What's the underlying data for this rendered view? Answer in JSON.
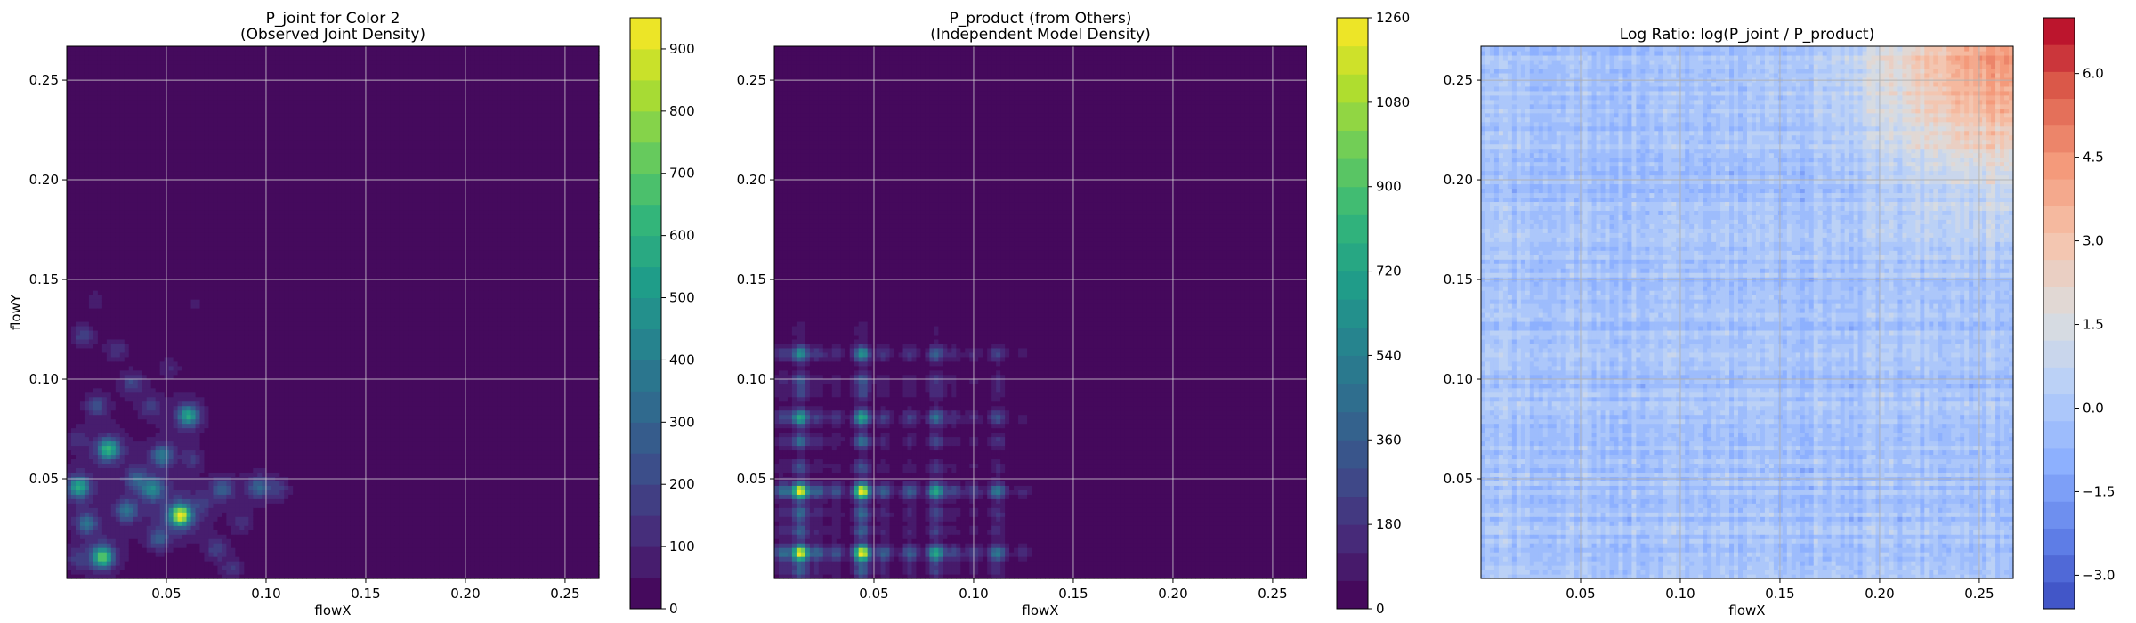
{
  "chart_data": [
    {
      "type": "heatmap",
      "title": "P_joint for Color 2\n(Observed Joint Density)",
      "xlabel": "flowX",
      "ylabel": "flowY",
      "xlim": [
        0.0,
        0.267
      ],
      "ylim": [
        0.0,
        0.267
      ],
      "x_ticks": [
        0.05,
        0.1,
        0.15,
        0.2,
        0.25
      ],
      "x_tick_labels": [
        "0.05",
        "0.10",
        "0.15",
        "0.20",
        "0.25"
      ],
      "y_ticks": [
        0.05,
        0.1,
        0.15,
        0.2,
        0.25
      ],
      "y_tick_labels": [
        "0.05",
        "0.10",
        "0.15",
        "0.20",
        "0.25"
      ],
      "grid": true,
      "colormap": "viridis",
      "colorbar": {
        "min": 0,
        "max": 950,
        "ticks": [
          0,
          100,
          200,
          300,
          400,
          500,
          600,
          700,
          800,
          900
        ],
        "tick_labels": [
          "0",
          "100",
          "200",
          "300",
          "400",
          "500",
          "600",
          "700",
          "800",
          "900"
        ]
      },
      "hotspots": [
        {
          "x": 0.057,
          "y": 0.032,
          "value": 950
        },
        {
          "x": 0.018,
          "y": 0.011,
          "value": 720
        },
        {
          "x": 0.021,
          "y": 0.065,
          "value": 640
        },
        {
          "x": 0.006,
          "y": 0.046,
          "value": 580
        },
        {
          "x": 0.061,
          "y": 0.082,
          "value": 560
        },
        {
          "x": 0.043,
          "y": 0.045,
          "value": 420
        },
        {
          "x": 0.048,
          "y": 0.062,
          "value": 380
        },
        {
          "x": 0.03,
          "y": 0.034,
          "value": 360
        },
        {
          "x": 0.01,
          "y": 0.028,
          "value": 330
        },
        {
          "x": 0.096,
          "y": 0.046,
          "value": 300
        },
        {
          "x": 0.078,
          "y": 0.045,
          "value": 280
        },
        {
          "x": 0.046,
          "y": 0.02,
          "value": 260
        },
        {
          "x": 0.035,
          "y": 0.05,
          "value": 250
        },
        {
          "x": 0.015,
          "y": 0.087,
          "value": 230
        },
        {
          "x": 0.033,
          "y": 0.098,
          "value": 200
        },
        {
          "x": 0.008,
          "y": 0.122,
          "value": 190
        },
        {
          "x": 0.075,
          "y": 0.015,
          "value": 180
        },
        {
          "x": 0.042,
          "y": 0.086,
          "value": 170
        },
        {
          "x": 0.106,
          "y": 0.045,
          "value": 160
        },
        {
          "x": 0.083,
          "y": 0.005,
          "value": 150
        },
        {
          "x": 0.025,
          "y": 0.115,
          "value": 140
        },
        {
          "x": 0.063,
          "y": 0.06,
          "value": 140
        },
        {
          "x": 0.005,
          "y": 0.01,
          "value": 130
        },
        {
          "x": 0.088,
          "y": 0.028,
          "value": 120
        },
        {
          "x": 0.005,
          "y": 0.07,
          "value": 120
        },
        {
          "x": 0.052,
          "y": 0.106,
          "value": 100
        },
        {
          "x": 0.068,
          "y": 0.038,
          "value": 110
        },
        {
          "x": 0.015,
          "y": 0.14,
          "value": 80
        },
        {
          "x": 0.065,
          "y": 0.138,
          "value": 60
        }
      ]
    },
    {
      "type": "heatmap",
      "title": "P_product (from Others)\n(Independent Model Density)",
      "xlabel": "flowX",
      "ylabel": "",
      "xlim": [
        0.0,
        0.267
      ],
      "ylim": [
        0.0,
        0.267
      ],
      "x_ticks": [
        0.05,
        0.1,
        0.15,
        0.2,
        0.25
      ],
      "x_tick_labels": [
        "0.05",
        "0.10",
        "0.15",
        "0.20",
        "0.25"
      ],
      "y_ticks": [
        0.05,
        0.1,
        0.15,
        0.2,
        0.25
      ],
      "y_tick_labels": [
        "0.05",
        "0.10",
        "0.15",
        "0.20",
        "0.25"
      ],
      "grid": true,
      "colormap": "viridis",
      "colorbar": {
        "min": 0,
        "max": 1260,
        "ticks": [
          0,
          180,
          360,
          540,
          720,
          900,
          1080,
          1260
        ],
        "tick_labels": [
          "0",
          "180",
          "360",
          "540",
          "720",
          "900",
          "1080",
          "1260"
        ]
      },
      "x_marginal": [
        {
          "x": 0.004,
          "w": 0.35
        },
        {
          "x": 0.013,
          "w": 1.0
        },
        {
          "x": 0.022,
          "w": 0.3
        },
        {
          "x": 0.031,
          "w": 0.25
        },
        {
          "x": 0.044,
          "w": 1.0
        },
        {
          "x": 0.055,
          "w": 0.3
        },
        {
          "x": 0.068,
          "w": 0.3
        },
        {
          "x": 0.081,
          "w": 0.6
        },
        {
          "x": 0.09,
          "w": 0.2
        },
        {
          "x": 0.1,
          "w": 0.18
        },
        {
          "x": 0.112,
          "w": 0.4
        },
        {
          "x": 0.125,
          "w": 0.12
        },
        {
          "x": 0.14,
          "w": 0.08
        },
        {
          "x": 0.165,
          "w": 0.05
        }
      ],
      "y_marginal": [
        {
          "y": 0.004,
          "w": 0.3
        },
        {
          "y": 0.013,
          "w": 1.0
        },
        {
          "y": 0.024,
          "w": 0.3
        },
        {
          "y": 0.033,
          "w": 0.35
        },
        {
          "y": 0.044,
          "w": 1.0
        },
        {
          "y": 0.056,
          "w": 0.25
        },
        {
          "y": 0.069,
          "w": 0.35
        },
        {
          "y": 0.081,
          "w": 0.6
        },
        {
          "y": 0.093,
          "w": 0.2
        },
        {
          "y": 0.1,
          "w": 0.25
        },
        {
          "y": 0.113,
          "w": 0.5
        },
        {
          "y": 0.125,
          "w": 0.1
        },
        {
          "y": 0.14,
          "w": 0.08
        },
        {
          "y": 0.155,
          "w": 0.05
        }
      ]
    },
    {
      "type": "heatmap",
      "title": "Log Ratio: log(P_joint / P_product)",
      "xlabel": "flowX",
      "ylabel": "",
      "xlim": [
        0.0,
        0.267
      ],
      "ylim": [
        0.0,
        0.267
      ],
      "x_ticks": [
        0.05,
        0.1,
        0.15,
        0.2,
        0.25
      ],
      "x_tick_labels": [
        "0.05",
        "0.10",
        "0.15",
        "0.20",
        "0.25"
      ],
      "y_ticks": [
        0.05,
        0.1,
        0.15,
        0.2,
        0.25
      ],
      "y_tick_labels": [
        "0.05",
        "0.10",
        "0.15",
        "0.20",
        "0.25"
      ],
      "grid": true,
      "colormap": "coolwarm",
      "colorbar": {
        "min": -3.6,
        "max": 7.0,
        "ticks": [
          -3.0,
          -1.5,
          0.0,
          1.5,
          3.0,
          4.5,
          6.0
        ],
        "tick_labels": [
          "−3.0",
          "−1.5",
          "0.0",
          "1.5",
          "3.0",
          "4.5",
          "6.0"
        ]
      },
      "trend": {
        "base": -0.2,
        "corner_peak": 4.6,
        "corner_x": 0.265,
        "corner_y": 0.265,
        "noise_amplitude": 0.9
      }
    }
  ]
}
